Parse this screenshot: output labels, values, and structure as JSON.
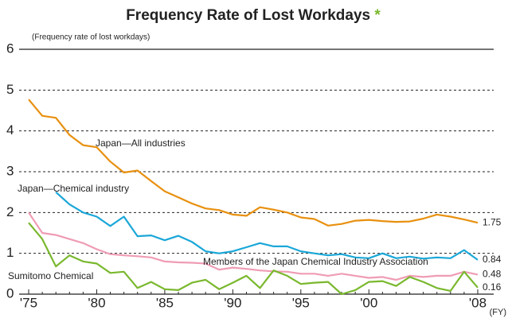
{
  "chart_data": {
    "type": "line",
    "title": "Frequency Rate of Lost Workdays",
    "title_mark": "*",
    "y_label": "(Frequency rate of lost workdays)",
    "x_label": "(FY)",
    "categories": [
      "'75",
      null,
      null,
      null,
      null,
      "'80",
      null,
      null,
      null,
      null,
      "'85",
      null,
      null,
      null,
      null,
      "'90",
      null,
      null,
      null,
      null,
      "'95",
      null,
      null,
      null,
      null,
      "'00",
      null,
      null,
      null,
      null,
      null,
      null,
      null,
      "'08"
    ],
    "ylim": [
      0,
      6
    ],
    "yticks": [
      0,
      1,
      2,
      3,
      4,
      5,
      6
    ],
    "grid": true,
    "series": [
      {
        "name": "Japan—All industries",
        "color": "#e8900f",
        "values": [
          4.77,
          4.37,
          4.32,
          3.9,
          3.65,
          3.6,
          3.25,
          2.98,
          3.03,
          2.77,
          2.52,
          2.37,
          2.22,
          2.1,
          2.06,
          1.95,
          1.92,
          2.13,
          2.07,
          2.0,
          1.88,
          1.84,
          1.68,
          1.72,
          1.8,
          1.82,
          1.79,
          1.77,
          1.78,
          1.85,
          1.95,
          1.9,
          1.83,
          1.75
        ]
      },
      {
        "name": "Japan—Chemical industry",
        "color": "#1aa7d8",
        "values": [
          null,
          null,
          2.5,
          2.2,
          2.0,
          1.9,
          1.67,
          1.9,
          1.42,
          1.44,
          1.32,
          1.43,
          1.28,
          1.05,
          1.0,
          1.05,
          1.15,
          1.25,
          1.17,
          1.17,
          1.05,
          1.0,
          0.95,
          0.98,
          0.9,
          0.88,
          1.0,
          0.88,
          0.92,
          0.87,
          0.9,
          0.88,
          1.08,
          0.84
        ]
      },
      {
        "name": "Members of the Japan Chemical Industry Association",
        "color": "#ef9cb4",
        "values": [
          2.0,
          1.5,
          1.45,
          1.35,
          1.25,
          1.1,
          0.98,
          0.95,
          0.93,
          0.9,
          0.8,
          0.78,
          0.77,
          0.75,
          0.6,
          0.65,
          0.62,
          0.58,
          0.56,
          0.55,
          0.5,
          0.5,
          0.45,
          0.5,
          0.45,
          0.4,
          0.42,
          0.35,
          0.45,
          0.42,
          0.45,
          0.45,
          0.55,
          0.48
        ]
      },
      {
        "name": "Sumitomo Chemical",
        "color": "#7ab82e",
        "values": [
          1.75,
          1.35,
          0.68,
          0.95,
          0.8,
          0.75,
          0.52,
          0.55,
          0.15,
          0.3,
          0.12,
          0.1,
          0.28,
          0.35,
          0.12,
          0.28,
          0.45,
          0.15,
          0.58,
          0.45,
          0.25,
          0.28,
          0.3,
          0,
          0.1,
          0.3,
          0.32,
          0.2,
          0.42,
          0.3,
          0.15,
          0.08,
          0.55,
          0.16
        ]
      }
    ]
  }
}
